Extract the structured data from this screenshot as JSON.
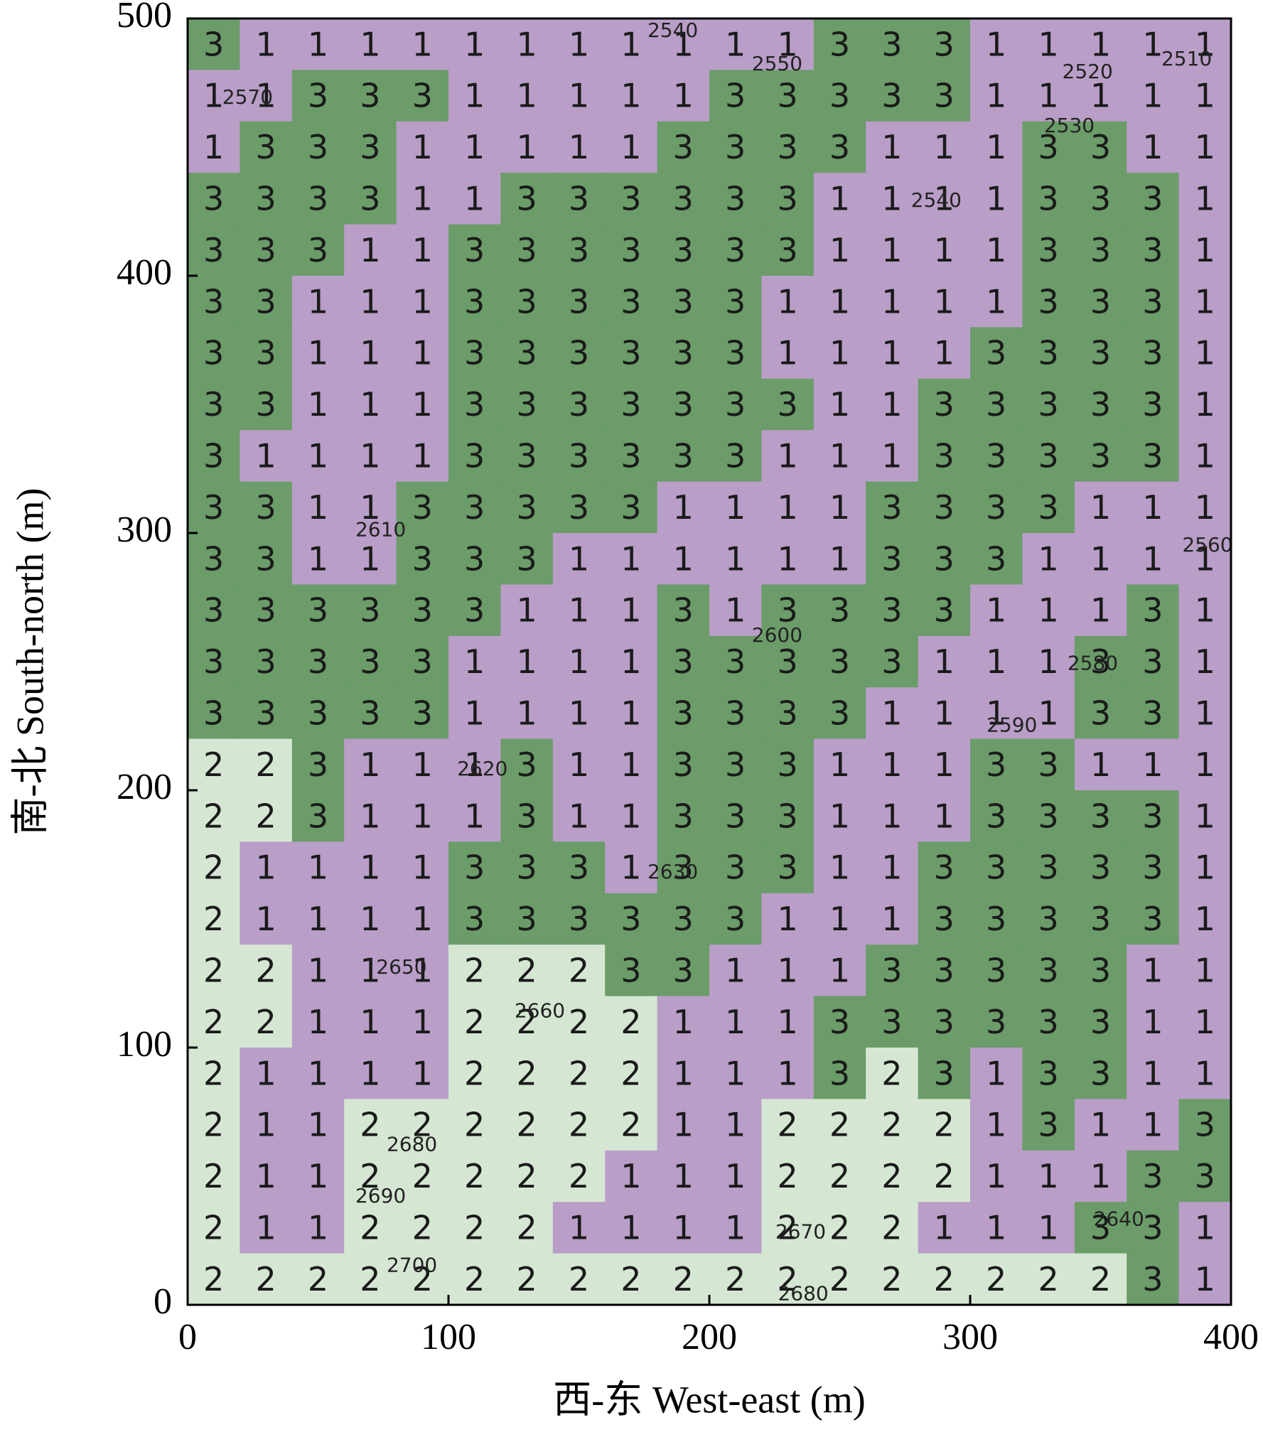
{
  "chart_data": {
    "type": "category-grid",
    "x_label": "西-东 West-east (m)",
    "y_label": "南-北 South-north (m)",
    "xlim": [
      0,
      400
    ],
    "ylim": [
      0,
      500
    ],
    "xticks": [
      0,
      100,
      200,
      300,
      400
    ],
    "yticks": [
      0,
      100,
      200,
      300,
      400,
      500
    ],
    "colors": {
      "1": "#b99ec8",
      "2": "#d5e7d3",
      "3": "#6b9c69"
    },
    "values": [
      [
        3,
        1,
        1,
        1,
        1,
        1,
        1,
        1,
        1,
        1,
        1,
        1,
        3,
        3,
        3,
        1,
        1,
        1,
        1,
        1
      ],
      [
        1,
        1,
        3,
        3,
        3,
        1,
        1,
        1,
        1,
        1,
        3,
        3,
        3,
        3,
        3,
        1,
        1,
        1,
        1,
        1
      ],
      [
        1,
        3,
        3,
        3,
        1,
        1,
        1,
        1,
        1,
        3,
        3,
        3,
        3,
        1,
        1,
        1,
        3,
        3,
        1,
        1
      ],
      [
        3,
        3,
        3,
        3,
        1,
        1,
        3,
        3,
        3,
        3,
        3,
        3,
        1,
        1,
        1,
        1,
        3,
        3,
        3,
        1
      ],
      [
        3,
        3,
        3,
        1,
        1,
        3,
        3,
        3,
        3,
        3,
        3,
        3,
        1,
        1,
        1,
        1,
        3,
        3,
        3,
        1
      ],
      [
        3,
        3,
        1,
        1,
        1,
        3,
        3,
        3,
        3,
        3,
        3,
        1,
        1,
        1,
        1,
        1,
        3,
        3,
        3,
        1
      ],
      [
        3,
        3,
        1,
        1,
        1,
        3,
        3,
        3,
        3,
        3,
        3,
        1,
        1,
        1,
        1,
        3,
        3,
        3,
        3,
        1
      ],
      [
        3,
        3,
        1,
        1,
        1,
        3,
        3,
        3,
        3,
        3,
        3,
        3,
        1,
        1,
        3,
        3,
        3,
        3,
        3,
        1
      ],
      [
        3,
        1,
        1,
        1,
        1,
        3,
        3,
        3,
        3,
        3,
        3,
        1,
        1,
        1,
        3,
        3,
        3,
        3,
        3,
        1
      ],
      [
        3,
        3,
        1,
        1,
        3,
        3,
        3,
        3,
        3,
        1,
        1,
        1,
        1,
        3,
        3,
        3,
        3,
        1,
        1,
        1
      ],
      [
        3,
        3,
        1,
        1,
        3,
        3,
        3,
        1,
        1,
        1,
        1,
        1,
        1,
        3,
        3,
        3,
        1,
        1,
        1,
        1
      ],
      [
        3,
        3,
        3,
        3,
        3,
        3,
        1,
        1,
        1,
        3,
        1,
        3,
        3,
        3,
        3,
        1,
        1,
        1,
        3,
        1
      ],
      [
        3,
        3,
        3,
        3,
        3,
        1,
        1,
        1,
        1,
        3,
        3,
        3,
        3,
        3,
        1,
        1,
        1,
        3,
        3,
        1
      ],
      [
        3,
        3,
        3,
        3,
        3,
        1,
        1,
        1,
        1,
        3,
        3,
        3,
        3,
        1,
        1,
        1,
        1,
        3,
        3,
        1
      ],
      [
        2,
        2,
        3,
        1,
        1,
        1,
        3,
        1,
        1,
        3,
        3,
        3,
        1,
        1,
        1,
        3,
        3,
        1,
        1,
        1
      ],
      [
        2,
        2,
        3,
        1,
        1,
        1,
        3,
        1,
        1,
        3,
        3,
        3,
        1,
        1,
        1,
        3,
        3,
        3,
        3,
        1
      ],
      [
        2,
        1,
        1,
        1,
        1,
        3,
        3,
        3,
        1,
        3,
        3,
        3,
        1,
        1,
        3,
        3,
        3,
        3,
        3,
        1
      ],
      [
        2,
        1,
        1,
        1,
        1,
        3,
        3,
        3,
        3,
        3,
        3,
        1,
        1,
        1,
        3,
        3,
        3,
        3,
        3,
        1
      ],
      [
        2,
        2,
        1,
        1,
        1,
        2,
        2,
        2,
        3,
        3,
        1,
        1,
        1,
        3,
        3,
        3,
        3,
        3,
        1,
        1
      ],
      [
        2,
        2,
        1,
        1,
        1,
        2,
        2,
        2,
        2,
        1,
        1,
        1,
        3,
        3,
        3,
        3,
        3,
        3,
        1,
        1
      ],
      [
        2,
        1,
        1,
        1,
        1,
        2,
        2,
        2,
        2,
        1,
        1,
        1,
        3,
        2,
        3,
        1,
        3,
        3,
        1,
        1
      ],
      [
        2,
        1,
        1,
        2,
        2,
        2,
        2,
        2,
        2,
        1,
        1,
        2,
        2,
        2,
        2,
        1,
        3,
        1,
        1,
        3
      ],
      [
        2,
        1,
        1,
        2,
        2,
        2,
        2,
        2,
        1,
        1,
        1,
        2,
        2,
        2,
        2,
        1,
        1,
        1,
        3,
        3
      ],
      [
        2,
        1,
        1,
        2,
        2,
        2,
        2,
        1,
        1,
        1,
        1,
        2,
        2,
        2,
        1,
        1,
        1,
        3,
        3,
        1
      ],
      [
        2,
        2,
        2,
        2,
        2,
        2,
        2,
        2,
        2,
        2,
        2,
        2,
        2,
        2,
        2,
        2,
        2,
        2,
        3,
        1
      ]
    ],
    "contour_labels": [
      2540,
      2510,
      2520,
      2550,
      2570,
      2530,
      2540,
      2560,
      2610,
      2600,
      2580,
      2590,
      2620,
      2630,
      2650,
      2660,
      2680,
      2690,
      2640,
      2670,
      2700,
      2680
    ]
  }
}
